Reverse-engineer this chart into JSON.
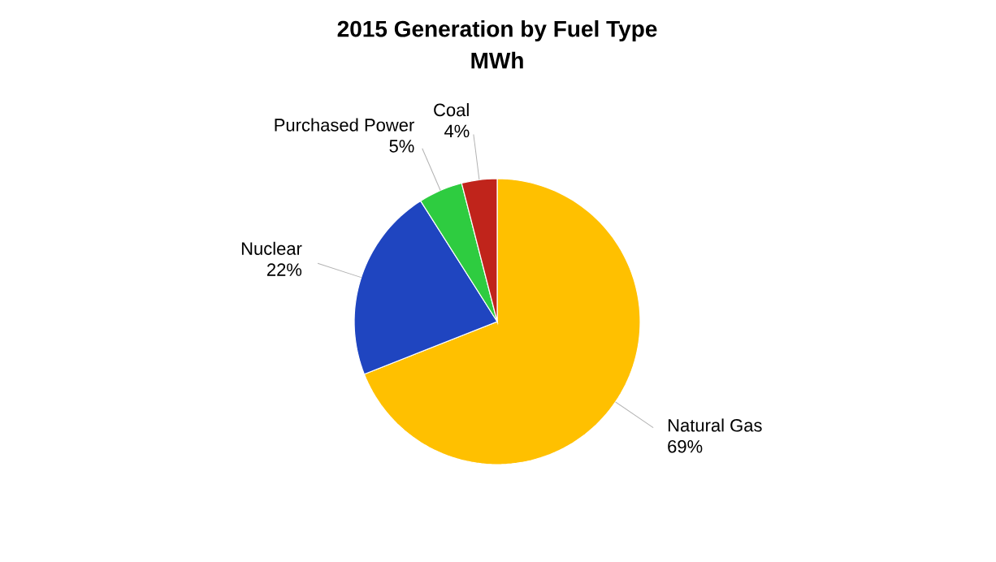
{
  "chart_data": {
    "type": "pie",
    "title": "2015 Generation by Fuel Type",
    "subtitle": "MWh",
    "categories": [
      "Natural Gas",
      "Nuclear",
      "Purchased Power",
      "Coal"
    ],
    "values": [
      69,
      22,
      5,
      4
    ],
    "value_labels": [
      "69%",
      "22%",
      "5%",
      "4%"
    ],
    "colors": [
      "#ffc000",
      "#1f45c0",
      "#2ecc40",
      "#c0241b"
    ]
  }
}
